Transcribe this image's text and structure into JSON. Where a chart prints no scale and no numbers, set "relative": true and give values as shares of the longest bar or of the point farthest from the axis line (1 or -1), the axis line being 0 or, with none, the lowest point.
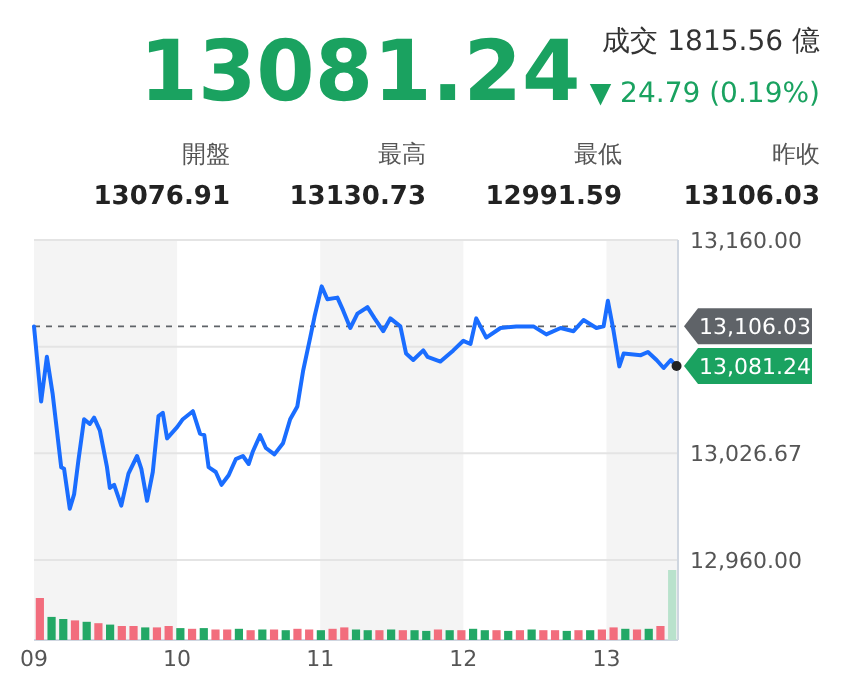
{
  "chart_data": [
    {
      "type": "line",
      "title": "13081.24",
      "annotations": [
        "成交 1815.56 億",
        "▼ 24.79 (0.19%)",
        "開盤",
        "13076.91",
        "最高",
        "13130.73",
        "最低",
        "12991.59",
        "昨收",
        "13106.03",
        {
          "text": "13,081.24",
          "x": 13.49,
          "y": 13081.24
        }
      ],
      "x": [
        9.0,
        9.05,
        9.09,
        9.13,
        9.19,
        9.21,
        9.25,
        9.28,
        9.31,
        9.35,
        9.39,
        9.42,
        9.46,
        9.51,
        9.53,
        9.56,
        9.61,
        9.66,
        9.72,
        9.75,
        9.79,
        9.83,
        9.87,
        9.9,
        9.93,
        10.0,
        10.04,
        10.11,
        10.16,
        10.19,
        10.22,
        10.27,
        10.31,
        10.36,
        10.41,
        10.46,
        10.5,
        10.53,
        10.58,
        10.62,
        10.68,
        10.74,
        10.79,
        10.84,
        10.88,
        10.93,
        10.96,
        11.01,
        11.05,
        11.12,
        11.16,
        11.21,
        11.26,
        11.33,
        11.38,
        11.44,
        11.49,
        11.56,
        11.6,
        11.65,
        11.72,
        11.75,
        11.84,
        11.93,
        12.0,
        12.05,
        12.09,
        12.16,
        12.26,
        12.37,
        12.49,
        12.58,
        12.68,
        12.77,
        12.84,
        12.93,
        12.98,
        13.01,
        13.05,
        13.09,
        13.12,
        13.24,
        13.29,
        13.35,
        13.4,
        13.45,
        13.49
      ],
      "series": [
        {
          "color": "#1a6dff",
          "values": [
            13106,
            13059,
            13087,
            13064,
            13018,
            13017,
            12992,
            13001,
            13022,
            13048,
            13045,
            13049,
            13041,
            13018,
            13005,
            13007,
            12994,
            13014,
            13025,
            13017,
            12997,
            13015,
            13050,
            13052,
            13036,
            13043,
            13048,
            13053,
            13039,
            13038,
            13018,
            13015,
            13007,
            13013,
            13023,
            13025,
            13020,
            13028,
            13038,
            13030,
            13026,
            13033,
            13048,
            13056,
            13078,
            13099,
            13112,
            13131,
            13123,
            13124,
            13116,
            13105,
            13114,
            13118,
            13111,
            13103,
            13111,
            13106,
            13089,
            13085,
            13091,
            13087,
            13084,
            13091,
            13097,
            13095,
            13111,
            13099,
            13105,
            13106,
            13106,
            13101,
            13105,
            13103,
            13110,
            13105,
            13106,
            13122,
            13103,
            13081,
            13089,
            13088,
            13090,
            13085,
            13080,
            13085,
            13081
          ]
        }
      ],
      "xlim": [
        9,
        13.5
      ],
      "ylim": [
        12910,
        13160
      ],
      "xticks": [
        {
          "value": 9,
          "label": "09"
        },
        {
          "value": 10,
          "label": "10"
        },
        {
          "value": 11,
          "label": "11"
        },
        {
          "value": 12,
          "label": "12"
        },
        {
          "value": 13,
          "label": "13"
        }
      ],
      "yticks": [
        {
          "value": 13160,
          "label": "13,160.00"
        },
        {
          "value": 13093.33,
          "label": null
        },
        {
          "value": 13026.67,
          "label": "13,026.67"
        },
        {
          "value": 12960,
          "label": "12,960.00"
        }
      ],
      "ref_lines": [
        {
          "axis": "y",
          "value": 13106.03,
          "label": "13,106.03",
          "color": "#5f6368",
          "line_style": "dashed"
        }
      ],
      "bands": [
        {
          "axis": "x",
          "from": 9,
          "to": 10,
          "color": "#f4f4f4"
        },
        {
          "axis": "x",
          "from": 11,
          "to": 12,
          "color": "#f4f4f4"
        },
        {
          "axis": "x",
          "from": 13,
          "to": 13.5,
          "color": "#f4f4f4"
        }
      ],
      "grid": "y",
      "marker": "none",
      "line_style": "solid"
    },
    {
      "type": "bar",
      "relative": true,
      "categories": [
        null,
        null,
        null,
        null,
        null,
        null,
        null,
        null,
        null,
        null,
        null,
        null,
        null,
        null,
        null,
        null,
        null,
        null,
        null,
        null,
        null,
        null,
        null,
        null,
        null,
        null,
        null,
        null,
        null,
        null,
        null,
        null,
        null,
        null,
        null,
        null,
        null,
        null,
        null,
        null,
        null,
        null,
        null,
        null,
        null,
        null,
        null,
        null,
        null,
        null,
        null,
        null,
        null,
        null,
        null
      ],
      "values": [
        0.6,
        0.33,
        0.3,
        0.28,
        0.26,
        0.24,
        0.22,
        0.2,
        0.2,
        0.18,
        0.18,
        0.2,
        0.17,
        0.16,
        0.17,
        0.15,
        0.15,
        0.16,
        0.14,
        0.15,
        0.15,
        0.14,
        0.16,
        0.15,
        0.14,
        0.16,
        0.18,
        0.15,
        0.14,
        0.14,
        0.15,
        0.14,
        0.14,
        0.13,
        0.15,
        0.14,
        0.14,
        0.16,
        0.14,
        0.14,
        0.13,
        0.14,
        0.15,
        0.14,
        0.14,
        0.13,
        0.14,
        0.14,
        0.15,
        0.18,
        0.16,
        0.15,
        0.16,
        0.2,
        1.0
      ],
      "colors": [
        "#f26d7d",
        "#23a866",
        "#23a866",
        "#f26d7d",
        "#23a866",
        "#f26d7d",
        "#23a866",
        "#f26d7d",
        "#f26d7d",
        "#23a866",
        "#f26d7d",
        "#f26d7d",
        "#23a866",
        "#f26d7d",
        "#23a866",
        "#f26d7d",
        "#f26d7d",
        "#23a866",
        "#f26d7d",
        "#23a866",
        "#f26d7d",
        "#23a866",
        "#f26d7d",
        "#f26d7d",
        "#23a866",
        "#f26d7d",
        "#f26d7d",
        "#23a866",
        "#23a866",
        "#f26d7d",
        "#23a866",
        "#f26d7d",
        "#23a866",
        "#23a866",
        "#f26d7d",
        "#23a866",
        "#f26d7d",
        "#23a866",
        "#23a866",
        "#f26d7d",
        "#23a866",
        "#f26d7d",
        "#23a866",
        "#f26d7d",
        "#f26d7d",
        "#23a866",
        "#f26d7d",
        "#23a866",
        "#f26d7d",
        "#f26d7d",
        "#23a866",
        "#f26d7d",
        "#23a866",
        "#f26d7d",
        "#b9e2cc"
      ]
    }
  ]
}
